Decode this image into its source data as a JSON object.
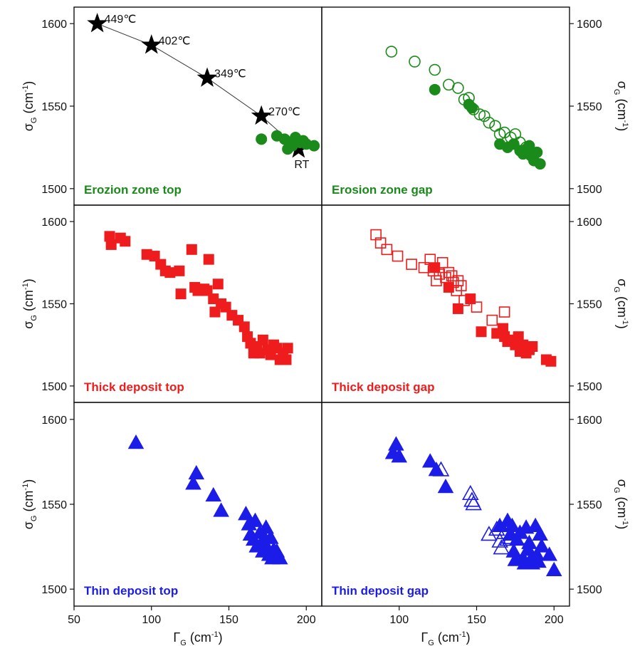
{
  "figure": {
    "axis_titles": {
      "y_left": {
        "symbol": "σ",
        "sub": "G",
        "unit": " (cm",
        "sup": "-1",
        "close": ")"
      },
      "y_right": {
        "symbol": "σ",
        "sub": "G",
        "unit": " (cm",
        "sup": "-1",
        "close": ")"
      },
      "x": {
        "symbol": "Γ",
        "sub": "G",
        "unit": " (cm",
        "sup": "-1",
        "close": ")"
      }
    },
    "x_ticks": [
      50,
      100,
      150,
      200
    ],
    "y_ticks": [
      1500,
      1550,
      1600
    ]
  },
  "chart_data": [
    {
      "type": "scatter",
      "title": "Erozion zone top",
      "title_color": "#1a8a1a",
      "xlim": [
        50,
        210
      ],
      "ylim": [
        1490,
        1610
      ],
      "series": [
        {
          "marker": "star",
          "filled": true,
          "color": "#000000",
          "connected": true,
          "points": [
            [
              65,
              1600
            ],
            [
              100,
              1587
            ],
            [
              136,
              1567
            ],
            [
              171,
              1544
            ],
            [
              195,
              1524
            ]
          ],
          "labels": [
            "449℃",
            "402℃",
            "349℃",
            "270℃",
            "RT"
          ]
        },
        {
          "marker": "circle",
          "filled": true,
          "color": "#1a8a1a",
          "points": [
            [
              171,
              1530
            ],
            [
              181,
              1532
            ],
            [
              186,
              1530
            ],
            [
              189,
              1528
            ],
            [
              191,
              1526
            ],
            [
              193,
              1531
            ],
            [
              196,
              1528
            ],
            [
              200,
              1527
            ],
            [
              205,
              1526
            ],
            [
              188,
              1524
            ],
            [
              198,
              1529
            ]
          ]
        }
      ]
    },
    {
      "type": "scatter",
      "title": "Erosion zone gap",
      "title_color": "#1a8a1a",
      "xlim": [
        50,
        210
      ],
      "ylim": [
        1490,
        1610
      ],
      "series": [
        {
          "marker": "circle",
          "filled": false,
          "color": "#1a8a1a",
          "points": [
            [
              95,
              1583
            ],
            [
              110,
              1577
            ],
            [
              123,
              1572
            ],
            [
              132,
              1563
            ],
            [
              138,
              1561
            ],
            [
              142,
              1554
            ],
            [
              145,
              1555
            ],
            [
              148,
              1548
            ],
            [
              152,
              1545
            ],
            [
              155,
              1544
            ],
            [
              158,
              1540
            ],
            [
              162,
              1538
            ],
            [
              165,
              1533
            ],
            [
              168,
              1534
            ],
            [
              172,
              1531
            ],
            [
              175,
              1533
            ],
            [
              178,
              1528
            ],
            [
              182,
              1525
            ]
          ]
        },
        {
          "marker": "circle",
          "filled": true,
          "color": "#1a8a1a",
          "points": [
            [
              123,
              1560
            ],
            [
              145,
              1551
            ],
            [
              147,
              1549
            ],
            [
              165,
              1527
            ],
            [
              170,
              1525
            ],
            [
              174,
              1527
            ],
            [
              178,
              1523
            ],
            [
              182,
              1524
            ],
            [
              185,
              1520
            ],
            [
              187,
              1517
            ],
            [
              189,
              1522
            ],
            [
              191,
              1515
            ],
            [
              184,
              1526
            ],
            [
              180,
              1521
            ]
          ]
        }
      ]
    },
    {
      "type": "scatter",
      "title": "Thick deposit top",
      "title_color": "#ee1c1c",
      "xlim": [
        50,
        210
      ],
      "ylim": [
        1490,
        1610
      ],
      "series": [
        {
          "marker": "square",
          "filled": true,
          "color": "#ee1c1c",
          "points": [
            [
              73,
              1591
            ],
            [
              74,
              1586
            ],
            [
              80,
              1590
            ],
            [
              83,
              1588
            ],
            [
              97,
              1580
            ],
            [
              102,
              1579
            ],
            [
              106,
              1574
            ],
            [
              109,
              1570
            ],
            [
              112,
              1569
            ],
            [
              118,
              1570
            ],
            [
              119,
              1556
            ],
            [
              126,
              1583
            ],
            [
              128,
              1560
            ],
            [
              130,
              1558
            ],
            [
              134,
              1559
            ],
            [
              136,
              1558
            ],
            [
              137,
              1577
            ],
            [
              140,
              1553
            ],
            [
              141,
              1545
            ],
            [
              143,
              1562
            ],
            [
              145,
              1550
            ],
            [
              148,
              1548
            ],
            [
              152,
              1543
            ],
            [
              156,
              1540
            ],
            [
              160,
              1536
            ],
            [
              162,
              1530
            ],
            [
              164,
              1526
            ],
            [
              166,
              1520
            ],
            [
              168,
              1524
            ],
            [
              170,
              1520
            ],
            [
              172,
              1528
            ],
            [
              175,
              1522
            ],
            [
              177,
              1519
            ],
            [
              179,
              1525
            ],
            [
              181,
              1523
            ],
            [
              183,
              1516
            ],
            [
              185,
              1520
            ],
            [
              187,
              1516
            ],
            [
              188,
              1523
            ]
          ]
        }
      ]
    },
    {
      "type": "scatter",
      "title": "Thick deposit gap",
      "title_color": "#ee1c1c",
      "xlim": [
        50,
        210
      ],
      "ylim": [
        1490,
        1610
      ],
      "series": [
        {
          "marker": "square",
          "filled": false,
          "color": "#ee1c1c",
          "points": [
            [
              85,
              1592
            ],
            [
              88,
              1587
            ],
            [
              92,
              1583
            ],
            [
              99,
              1579
            ],
            [
              108,
              1574
            ],
            [
              116,
              1572
            ],
            [
              120,
              1577
            ],
            [
              122,
              1570
            ],
            [
              124,
              1564
            ],
            [
              126,
              1568
            ],
            [
              128,
              1575
            ],
            [
              130,
              1566
            ],
            [
              132,
              1569
            ],
            [
              134,
              1567
            ],
            [
              135,
              1563
            ],
            [
              137,
              1558
            ],
            [
              138,
              1564
            ],
            [
              140,
              1561
            ],
            [
              142,
              1552
            ],
            [
              150,
              1548
            ],
            [
              160,
              1540
            ],
            [
              168,
              1545
            ]
          ]
        },
        {
          "marker": "square",
          "filled": true,
          "color": "#ee1c1c",
          "points": [
            [
              123,
              1572
            ],
            [
              132,
              1560
            ],
            [
              138,
              1547
            ],
            [
              146,
              1553
            ],
            [
              153,
              1533
            ],
            [
              163,
              1532
            ],
            [
              167,
              1535
            ],
            [
              168,
              1530
            ],
            [
              170,
              1527
            ],
            [
              172,
              1528
            ],
            [
              175,
              1525
            ],
            [
              177,
              1530
            ],
            [
              178,
              1521
            ],
            [
              180,
              1525
            ],
            [
              182,
              1520
            ],
            [
              184,
              1522
            ],
            [
              186,
              1524
            ],
            [
              195,
              1516
            ],
            [
              198,
              1515
            ]
          ]
        }
      ]
    },
    {
      "type": "scatter",
      "title": "Thin deposit top",
      "title_color": "#1c1ce8",
      "xlim": [
        50,
        210
      ],
      "ylim": [
        1490,
        1610
      ],
      "series": [
        {
          "marker": "triangle",
          "filled": true,
          "color": "#1c1ce8",
          "points": [
            [
              90,
              1586
            ],
            [
              127,
              1562
            ],
            [
              129,
              1568
            ],
            [
              140,
              1555
            ],
            [
              145,
              1546
            ],
            [
              161,
              1544
            ],
            [
              163,
              1538
            ],
            [
              164,
              1532
            ],
            [
              166,
              1529
            ],
            [
              167,
              1540
            ],
            [
              168,
              1525
            ],
            [
              170,
              1533
            ],
            [
              171,
              1527
            ],
            [
              172,
              1522
            ],
            [
              173,
              1530
            ],
            [
              174,
              1536
            ],
            [
              175,
              1524
            ],
            [
              176,
              1520
            ],
            [
              177,
              1530
            ],
            [
              178,
              1518
            ],
            [
              179,
              1523
            ],
            [
              180,
              1520
            ],
            [
              181,
              1522
            ],
            [
              182,
              1519
            ],
            [
              183,
              1518
            ]
          ]
        }
      ]
    },
    {
      "type": "scatter",
      "title": "Thin deposit gap",
      "title_color": "#1c1ce8",
      "xlim": [
        50,
        210
      ],
      "ylim": [
        1490,
        1610
      ],
      "series": [
        {
          "marker": "triangle",
          "filled": true,
          "color": "#1c1ce8",
          "points": [
            [
              96,
              1580
            ],
            [
              98,
              1585
            ],
            [
              100,
              1578
            ],
            [
              120,
              1575
            ],
            [
              124,
              1570
            ],
            [
              130,
              1560
            ],
            [
              165,
              1537
            ],
            [
              170,
              1540
            ],
            [
              172,
              1532
            ],
            [
              173,
              1537
            ],
            [
              174,
              1522
            ],
            [
              175,
              1517
            ],
            [
              176,
              1529
            ],
            [
              178,
              1533
            ],
            [
              180,
              1518
            ],
            [
              181,
              1515
            ],
            [
              182,
              1536
            ],
            [
              183,
              1523
            ],
            [
              184,
              1527
            ],
            [
              186,
              1519
            ],
            [
              186,
              1515
            ],
            [
              188,
              1537
            ],
            [
              189,
              1520
            ],
            [
              190,
              1516
            ],
            [
              191,
              1532
            ],
            [
              192,
              1525
            ],
            [
              197,
              1520
            ],
            [
              200,
              1511
            ]
          ]
        },
        {
          "marker": "triangle",
          "filled": false,
          "color": "#1c1ce8",
          "points": [
            [
              127,
              1570
            ],
            [
              146,
              1556
            ],
            [
              147,
              1552
            ],
            [
              148,
              1550
            ],
            [
              158,
              1532
            ],
            [
              163,
              1535
            ],
            [
              165,
              1528
            ],
            [
              166,
              1524
            ],
            [
              168,
              1533
            ],
            [
              170,
              1529
            ],
            [
              172,
              1530
            ],
            [
              180,
              1530
            ]
          ]
        }
      ]
    }
  ]
}
